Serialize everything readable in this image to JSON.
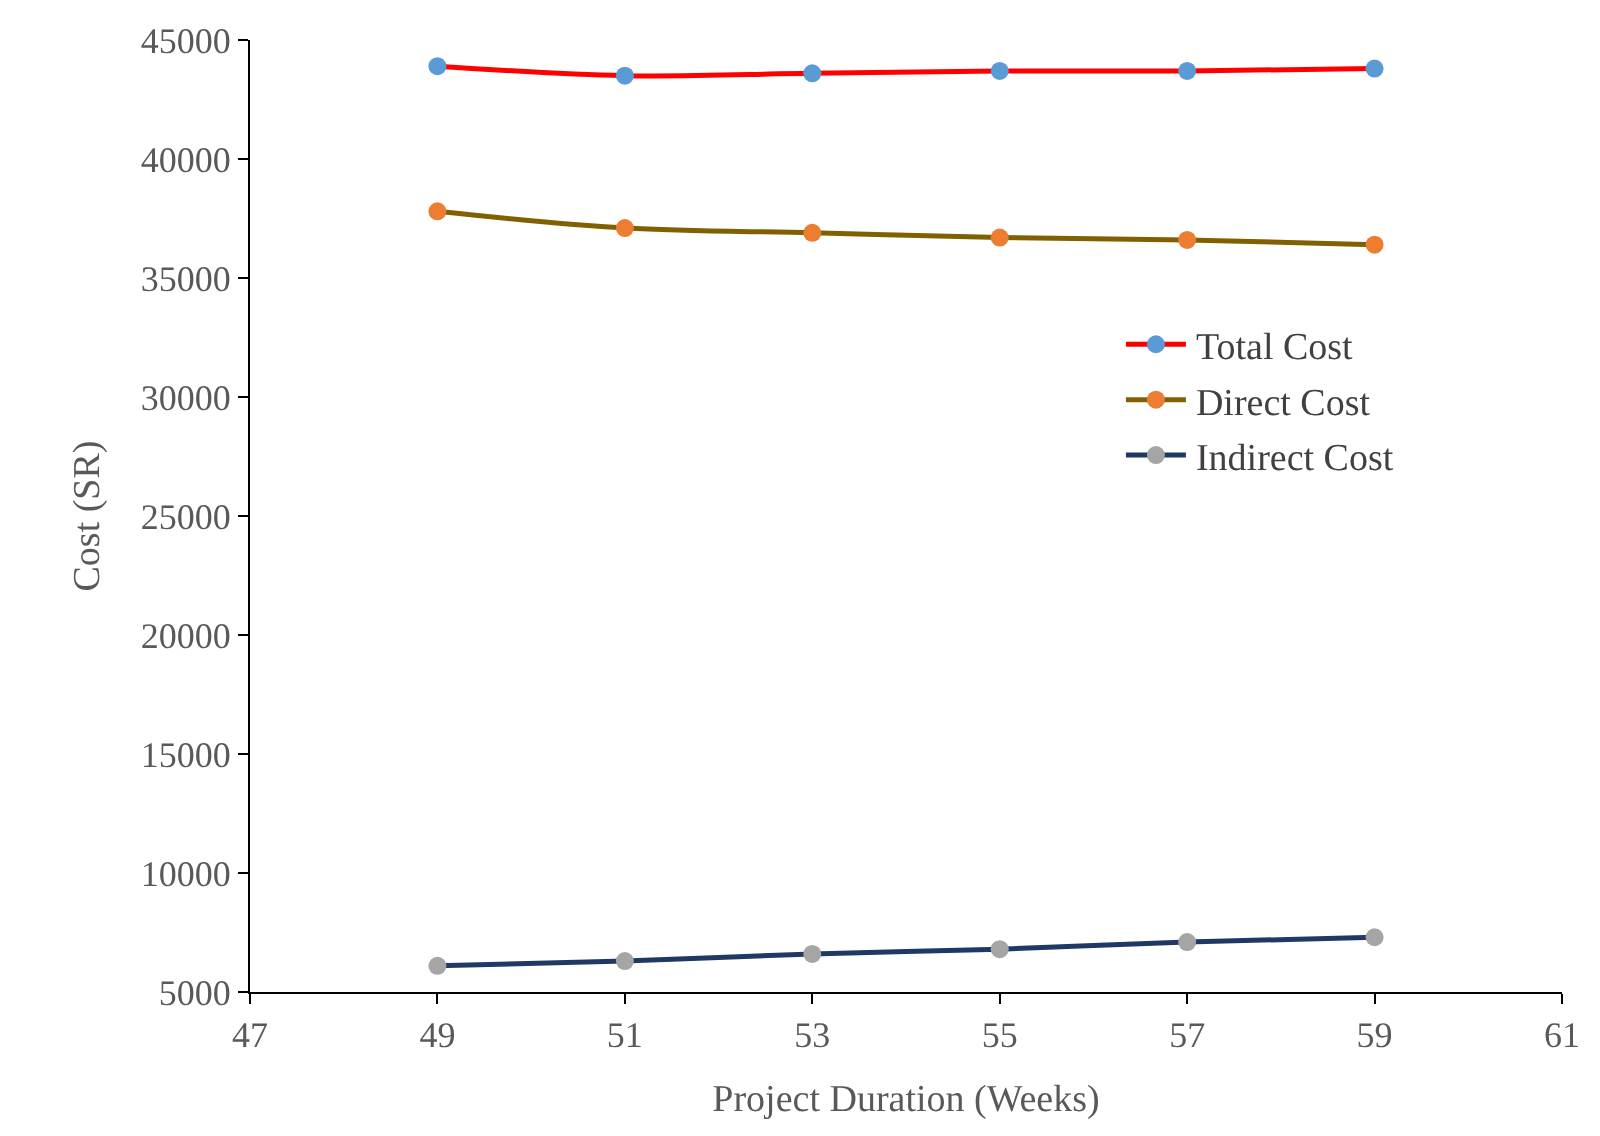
{
  "chart_data": {
    "type": "line",
    "xlabel": "Project Duration (Weeks)",
    "ylabel": "Cost (SR)",
    "x": [
      49,
      51,
      53,
      55,
      57,
      59
    ],
    "xlim": [
      47,
      61
    ],
    "xticks": [
      47,
      49,
      51,
      53,
      55,
      57,
      59,
      61
    ],
    "ylim": [
      5000,
      45000
    ],
    "yticks": [
      5000,
      10000,
      15000,
      20000,
      25000,
      30000,
      35000,
      40000,
      45000
    ],
    "grid": false,
    "legend": "right",
    "marker": "circle",
    "line_style": "solid",
    "series": [
      {
        "name": "Total Cost",
        "color": "#ff0000",
        "colors": [
          "#5b9bd5",
          "#5b9bd5",
          "#5b9bd5",
          "#5b9bd5",
          "#5b9bd5",
          "#5b9bd5"
        ],
        "values": [
          43900,
          43500,
          43600,
          43700,
          43700,
          43800
        ]
      },
      {
        "name": "Direct Cost",
        "color": "#806000",
        "colors": [
          "#ed7d31",
          "#ed7d31",
          "#ed7d31",
          "#ed7d31",
          "#ed7d31",
          "#ed7d31"
        ],
        "values": [
          37800,
          37100,
          36900,
          36700,
          36600,
          36400
        ]
      },
      {
        "name": "Indirect Cost",
        "color": "#203864",
        "colors": [
          "#a5a5a5",
          "#a5a5a5",
          "#a5a5a5",
          "#a5a5a5",
          "#a5a5a5",
          "#a5a5a5"
        ],
        "values": [
          6100,
          6300,
          6600,
          6800,
          7100,
          7300
        ]
      }
    ]
  }
}
